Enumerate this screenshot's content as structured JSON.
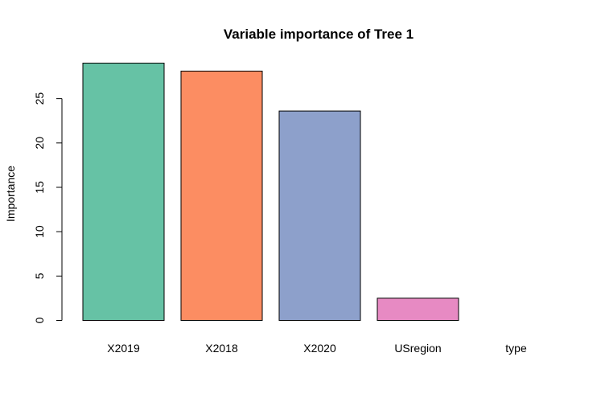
{
  "chart_data": {
    "type": "bar",
    "title": "Variable importance of Tree 1",
    "xlabel": "",
    "ylabel": "Importance",
    "categories": [
      "X2019",
      "X2018",
      "X2020",
      "USregion",
      "type"
    ],
    "values": [
      29.0,
      28.1,
      23.6,
      2.5,
      0.0
    ],
    "colors": [
      "#66C2A5",
      "#FC8D62",
      "#8DA0CB",
      "#E78AC3",
      "#A6D854"
    ],
    "yticks": [
      0,
      5,
      10,
      15,
      20,
      25
    ],
    "ylim": [
      0,
      29.0
    ],
    "grid": false,
    "legend": "none"
  }
}
